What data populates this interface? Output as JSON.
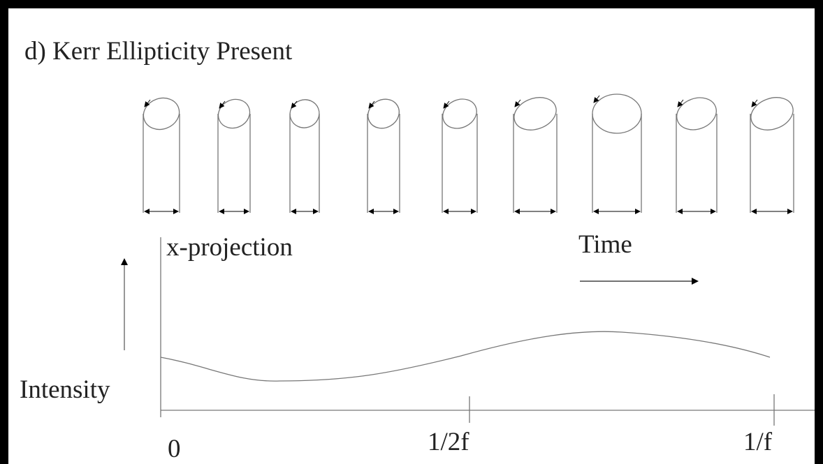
{
  "title": "d) Kerr Ellipticity Present",
  "labels": {
    "projection": "x-projection",
    "time": "Time",
    "intensity": "Intensity"
  },
  "axis": {
    "ticks": [
      "0",
      "1/2f",
      "1/f"
    ]
  }
}
